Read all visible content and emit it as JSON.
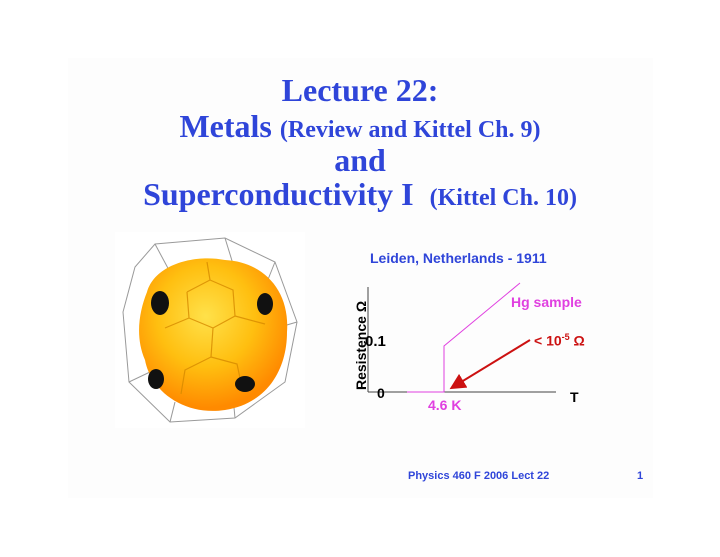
{
  "title": {
    "line1": "Lecture 22:",
    "line2_main": "Metals ",
    "line2_sub": "(Review and Kittel Ch. 9)",
    "line3": "and",
    "line4_main": "Superconductivity I",
    "line4_sub": "(Kittel Ch. 10)"
  },
  "graph": {
    "heading": "Leiden, Netherlands - 1911",
    "series_label": "Hg sample",
    "annotation_prefix": "< 10",
    "annotation_exp": "-5",
    "annotation_unit": " Ω",
    "ytick_01": "0.1",
    "ytick_0": "0",
    "xlabel": "T",
    "ylabel": "Resistence Ω",
    "tc_label": "4.6 K"
  },
  "footer": {
    "course": "Physics 460 F 2006  Lect 22",
    "page": "1"
  },
  "colors": {
    "title": "#2f45d9",
    "series": "#e040e0",
    "arrow": "#cc1111"
  },
  "figure_icon": "fermi-surface-polyhedron"
}
